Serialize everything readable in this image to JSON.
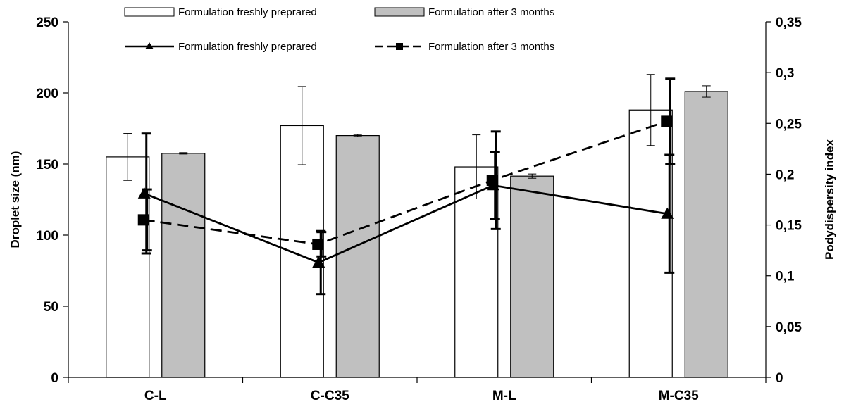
{
  "chart_data": {
    "type": "bar",
    "categories": [
      "C-L",
      "C-C35",
      "M-L",
      "M-C35"
    ],
    "ylabel": "Droplet size (nm)",
    "y2label": "Podydispersity index",
    "ylim": [
      0,
      250
    ],
    "y2lim": [
      0,
      0.35
    ],
    "yticks": [
      "0",
      "50",
      "100",
      "150",
      "200",
      "250"
    ],
    "y2ticks": [
      "0",
      "0,05",
      "0,1",
      "0,15",
      "0,2",
      "0,25",
      "0,3",
      "0,35"
    ],
    "grid": false,
    "legend_position": "top",
    "bar_series": [
      {
        "name": "Formulation freshly preprared",
        "fill": "#ffffff",
        "values": [
          155,
          177,
          148,
          188
        ],
        "errors": [
          16.5,
          27.5,
          22.5,
          25
        ]
      },
      {
        "name": "Formulation after 3 months",
        "fill": "#c0c0c0",
        "values": [
          157.5,
          170,
          141.5,
          201
        ],
        "errors": [
          0.5,
          0.7,
          1.5,
          4
        ]
      }
    ],
    "line_series": [
      {
        "name": "Formulation freshly preprared",
        "axis": "right",
        "marker": "triangle",
        "dash": "solid",
        "values": [
          0.181,
          0.113,
          0.189,
          0.161
        ],
        "errors": [
          0.059,
          0.031,
          0.033,
          0.058
        ]
      },
      {
        "name": "Formulation after 3 months",
        "axis": "right",
        "marker": "square",
        "dash": "dashed",
        "values": [
          0.155,
          0.131,
          0.194,
          0.252
        ],
        "errors": [
          0.03,
          0.012,
          0.048,
          0.042
        ]
      }
    ]
  }
}
